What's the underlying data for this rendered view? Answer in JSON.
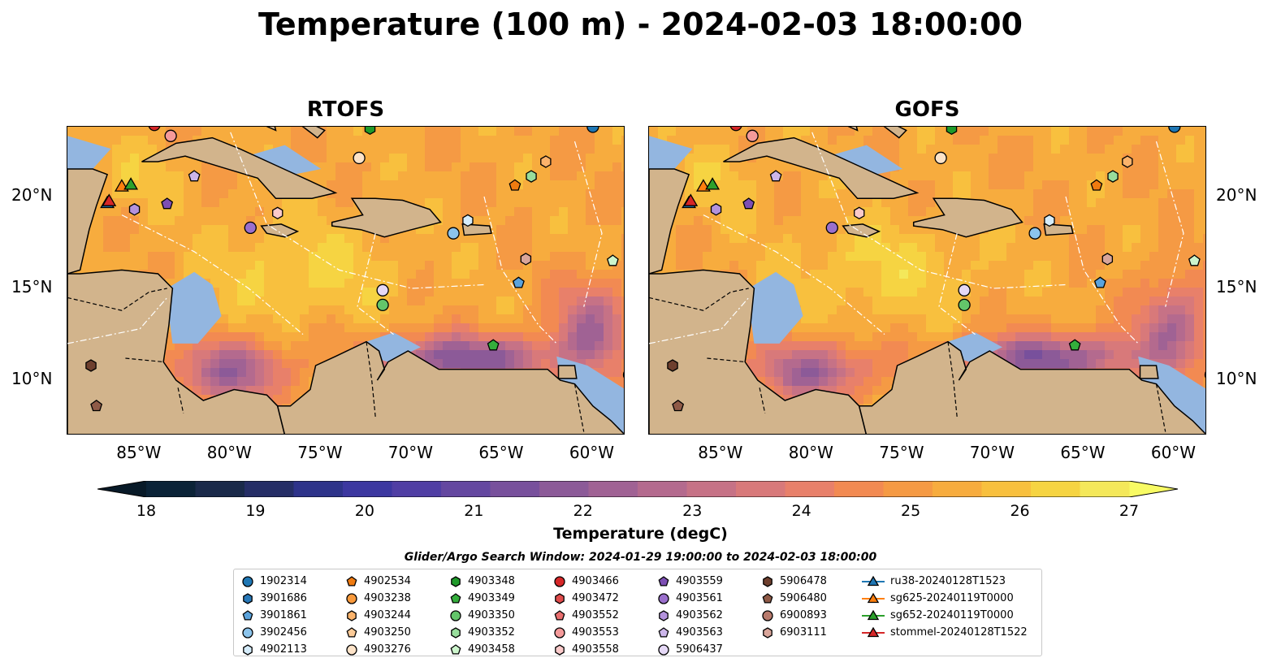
{
  "title": "Temperature (100 m) - 2024-02-03 18:00:00",
  "panels": [
    {
      "title": "RTOFS"
    },
    {
      "title": "GOFS"
    }
  ],
  "lon_labels": [
    "85°W",
    "80°W",
    "75°W",
    "70°W",
    "65°W",
    "60°W"
  ],
  "lat_labels": [
    "20°N",
    "15°N",
    "10°N"
  ],
  "colorbar": {
    "label": "Temperature (degC)",
    "ticks": [
      "18",
      "19",
      "20",
      "21",
      "22",
      "23",
      "24",
      "25",
      "26",
      "27"
    ],
    "min": 18,
    "max": 27,
    "colors": [
      "#0b2337",
      "#1a2a4a",
      "#252e66",
      "#2e338a",
      "#3c37a0",
      "#503ea4",
      "#6447a0",
      "#78509c",
      "#8c5a98",
      "#a06294",
      "#b46a8e",
      "#c67286",
      "#d8797a",
      "#e8806a",
      "#f28a52",
      "#f59a44",
      "#f7ac3e",
      "#f8c03e",
      "#f6d442",
      "#f4e85a"
    ]
  },
  "legend": {
    "title": "Glider/Argo Search Window: 2024-01-29 19:00:00 to 2024-02-03 18:00:00",
    "columns": [
      [
        {
          "label": "1902314",
          "marker": "circle",
          "color": "#1f77b4"
        },
        {
          "label": "3901686",
          "marker": "hexagon",
          "color": "#2878b8"
        },
        {
          "label": "3901861",
          "marker": "pentagon",
          "color": "#5ba3dc"
        },
        {
          "label": "3902456",
          "marker": "circle",
          "color": "#8cc4ec"
        },
        {
          "label": "4902113",
          "marker": "hexagon",
          "color": "#d5ecfb"
        }
      ],
      [
        {
          "label": "4902534",
          "marker": "pentagon",
          "color": "#f07b10"
        },
        {
          "label": "4903238",
          "marker": "circle",
          "color": "#f99a3c"
        },
        {
          "label": "4903244",
          "marker": "hexagon",
          "color": "#fbb36b"
        },
        {
          "label": "4903250",
          "marker": "pentagon",
          "color": "#fccb98"
        },
        {
          "label": "4903276",
          "marker": "circle",
          "color": "#fde3c8"
        }
      ],
      [
        {
          "label": "4903348",
          "marker": "hexagon",
          "color": "#1f9a2a"
        },
        {
          "label": "4903349",
          "marker": "pentagon",
          "color": "#34ae3c"
        },
        {
          "label": "4903350",
          "marker": "circle",
          "color": "#63c56a"
        },
        {
          "label": "4903352",
          "marker": "hexagon",
          "color": "#98dd9c"
        },
        {
          "label": "4903458",
          "marker": "pentagon",
          "color": "#ccf5cc"
        }
      ],
      [
        {
          "label": "4903466",
          "marker": "circle",
          "color": "#d62728"
        },
        {
          "label": "4903472",
          "marker": "hexagon",
          "color": "#e04b4b"
        },
        {
          "label": "4903552",
          "marker": "pentagon",
          "color": "#ea6f6f"
        },
        {
          "label": "4903553",
          "marker": "circle",
          "color": "#f49a9a"
        },
        {
          "label": "4903558",
          "marker": "hexagon",
          "color": "#fbcaca"
        }
      ],
      [
        {
          "label": "4903559",
          "marker": "pentagon",
          "color": "#7d4fb4"
        },
        {
          "label": "4903561",
          "marker": "circle",
          "color": "#9a6fcc"
        },
        {
          "label": "4903562",
          "marker": "hexagon",
          "color": "#b392dc"
        },
        {
          "label": "4903563",
          "marker": "pentagon",
          "color": "#ccb6ea"
        },
        {
          "label": "5906437",
          "marker": "circle",
          "color": "#e5d8f6"
        }
      ],
      [
        {
          "label": "5906478",
          "marker": "hexagon",
          "color": "#6e3f2e"
        },
        {
          "label": "5906480",
          "marker": "pentagon",
          "color": "#8f5a47"
        },
        {
          "label": "6900893",
          "marker": "circle",
          "color": "#b87a6c"
        },
        {
          "label": "6903111",
          "marker": "hexagon",
          "color": "#d9a59a"
        }
      ],
      [
        {
          "label": "ru38-20240128T1523",
          "marker": "triangle",
          "color": "#1f77b4",
          "line": true
        },
        {
          "label": "sg625-20240119T0000",
          "marker": "triangle",
          "color": "#ff7f0e",
          "line": true
        },
        {
          "label": "sg652-20240119T0000",
          "marker": "triangle",
          "color": "#2ca02c",
          "line": true
        },
        {
          "label": "stommel-20240128T1522",
          "marker": "triangle",
          "color": "#d62728",
          "line": true
        }
      ]
    ]
  },
  "map_markers": [
    {
      "id": "1902314",
      "lon": -60.0,
      "lat": 23.8
    },
    {
      "id": "4902534",
      "lon": -64.3,
      "lat": 20.6
    },
    {
      "id": "3901861",
      "lon": -64.1,
      "lat": 15.3
    },
    {
      "id": "3902456",
      "lon": -67.7,
      "lat": 18.0
    },
    {
      "id": "4902113",
      "lon": -66.9,
      "lat": 18.7
    },
    {
      "id": "4903244",
      "lon": -62.6,
      "lat": 21.9
    },
    {
      "id": "4903352",
      "lon": -63.4,
      "lat": 21.1
    },
    {
      "id": "4903458",
      "lon": -58.9,
      "lat": 16.5
    },
    {
      "id": "4903349",
      "lon": -65.5,
      "lat": 11.9
    },
    {
      "id": "4903350",
      "lon": -71.6,
      "lat": 14.1
    },
    {
      "id": "5906437",
      "lon": -71.6,
      "lat": 14.9
    },
    {
      "id": "4903561",
      "lon": -78.9,
      "lat": 18.3
    },
    {
      "id": "4903558",
      "lon": -77.4,
      "lat": 19.1
    },
    {
      "id": "4903348",
      "lon": -72.3,
      "lat": 23.7
    },
    {
      "id": "4903276",
      "lon": -72.9,
      "lat": 22.1
    },
    {
      "id": "4903553",
      "lon": -83.3,
      "lat": 23.3
    },
    {
      "id": "4903559",
      "lon": -83.5,
      "lat": 19.6
    },
    {
      "id": "4903563",
      "lon": -82.0,
      "lat": 21.1
    },
    {
      "id": "4903562",
      "lon": -85.3,
      "lat": 19.3
    },
    {
      "id": "6903111",
      "lon": -63.7,
      "lat": 16.6
    },
    {
      "id": "6900893",
      "lon": -58.0,
      "lat": 10.3
    },
    {
      "id": "5906478",
      "lon": -87.7,
      "lat": 10.8
    },
    {
      "id": "5906480",
      "lon": -87.4,
      "lat": 8.6
    },
    {
      "id": "4903466",
      "lon": -84.2,
      "lat": 23.9
    }
  ],
  "gliders": [
    {
      "id": "ru38-20240128T1523",
      "lon": -86.8,
      "lat": 19.6
    },
    {
      "id": "sg625-20240119T0000",
      "lon": -86.0,
      "lat": 20.5
    },
    {
      "id": "sg652-20240119T0000",
      "lon": -85.5,
      "lat": 20.6
    },
    {
      "id": "stommel-20240128T1522",
      "lon": -86.7,
      "lat": 19.7
    }
  ]
}
